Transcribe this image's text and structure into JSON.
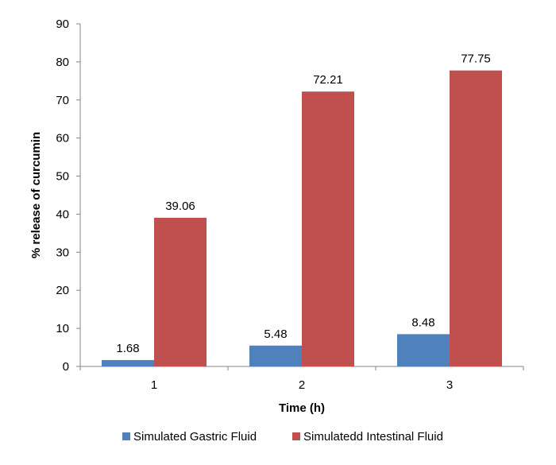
{
  "chart_data": {
    "type": "bar",
    "title": "",
    "xlabel": "Time (h)",
    "ylabel": "% release of curcumin",
    "categories": [
      "1",
      "2",
      "3"
    ],
    "ylim": [
      0,
      90
    ],
    "yticks": [
      0,
      10,
      20,
      30,
      40,
      50,
      60,
      70,
      80,
      90
    ],
    "grid": false,
    "legend_position": "bottom",
    "series": [
      {
        "name": "Simulated Gastric Fluid",
        "color": "#4F81BD",
        "values": [
          1.68,
          5.48,
          8.48
        ],
        "labels": [
          "1.68",
          "5.48",
          "8.48"
        ]
      },
      {
        "name": "Simulatedd Intestinal Fluid",
        "color": "#C0504D",
        "values": [
          39.06,
          72.21,
          77.75
        ],
        "labels": [
          "39.06",
          "72.21",
          "77.75"
        ]
      }
    ]
  }
}
